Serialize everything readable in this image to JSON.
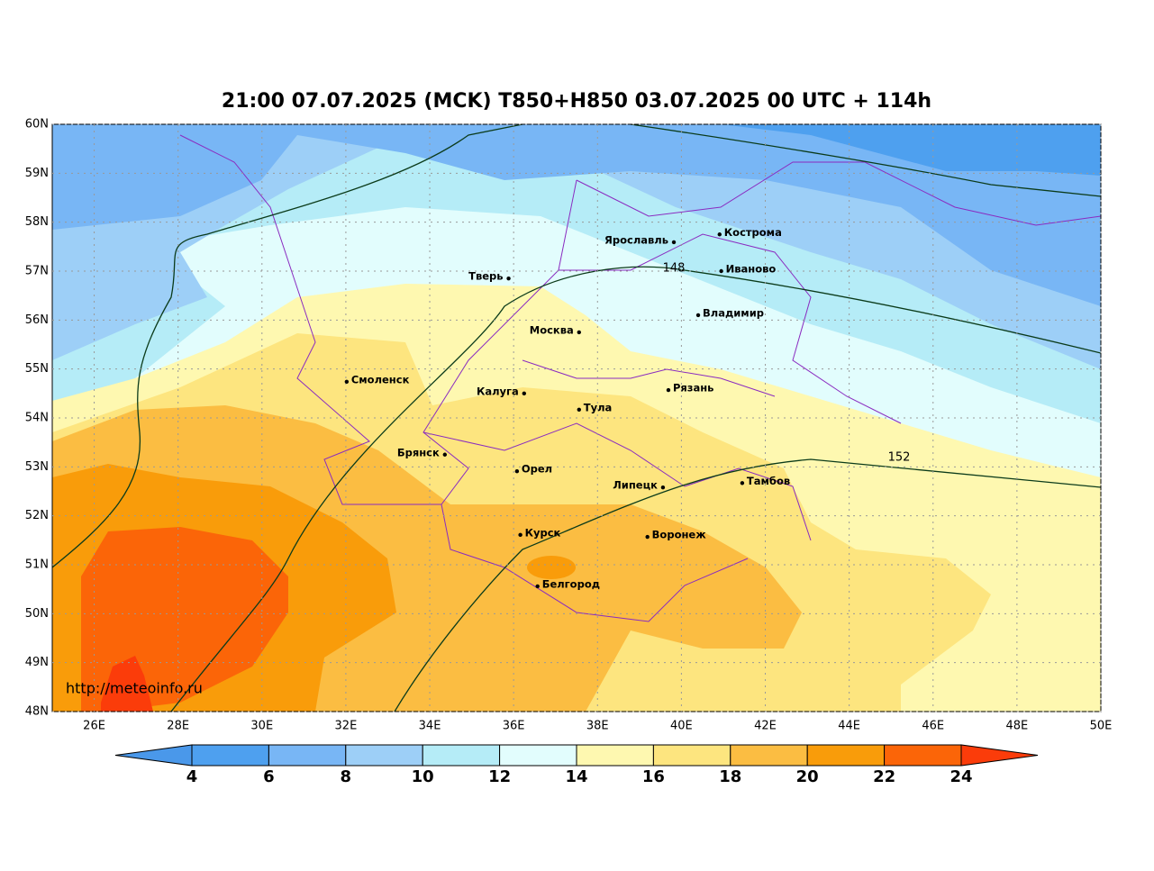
{
  "chart_data": {
    "type": "map",
    "title": "21:00 07.07.2025 (MCK) T850+H850 03.07.2025 00 UTC + 114h",
    "xlim": [
      25,
      50
    ],
    "ylim": [
      48,
      60
    ],
    "xticks": [
      {
        "value": 26,
        "label": "26E"
      },
      {
        "value": 28,
        "label": "28E"
      },
      {
        "value": 30,
        "label": "30E"
      },
      {
        "value": 32,
        "label": "32E"
      },
      {
        "value": 34,
        "label": "34E"
      },
      {
        "value": 36,
        "label": "36E"
      },
      {
        "value": 38,
        "label": "38E"
      },
      {
        "value": 40,
        "label": "40E"
      },
      {
        "value": 42,
        "label": "42E"
      },
      {
        "value": 44,
        "label": "44E"
      },
      {
        "value": 46,
        "label": "46E"
      },
      {
        "value": 48,
        "label": "48E"
      },
      {
        "value": 50,
        "label": "50E"
      }
    ],
    "yticks": [
      {
        "value": 48,
        "label": "48N"
      },
      {
        "value": 49,
        "label": "49N"
      },
      {
        "value": 50,
        "label": "50N"
      },
      {
        "value": 51,
        "label": "51N"
      },
      {
        "value": 52,
        "label": "52N"
      },
      {
        "value": 53,
        "label": "53N"
      },
      {
        "value": 54,
        "label": "54N"
      },
      {
        "value": 55,
        "label": "55N"
      },
      {
        "value": 56,
        "label": "56N"
      },
      {
        "value": 57,
        "label": "57N"
      },
      {
        "value": 58,
        "label": "58N"
      },
      {
        "value": 59,
        "label": "59N"
      },
      {
        "value": 60,
        "label": "60N"
      }
    ],
    "grid": true,
    "cities": [
      {
        "name": "Ярославль",
        "lon": 39.82,
        "lat": 57.59
      },
      {
        "name": "Кострома",
        "lon": 40.91,
        "lat": 57.75
      },
      {
        "name": "Иваново",
        "lon": 40.95,
        "lat": 57.0
      },
      {
        "name": "Тверь",
        "lon": 35.88,
        "lat": 56.85
      },
      {
        "name": "Владимир",
        "lon": 40.4,
        "lat": 56.1
      },
      {
        "name": "Москва",
        "lon": 37.56,
        "lat": 55.75
      },
      {
        "name": "Смоленск",
        "lon": 32.02,
        "lat": 54.74
      },
      {
        "name": "Калуга",
        "lon": 36.25,
        "lat": 54.5
      },
      {
        "name": "Рязань",
        "lon": 39.69,
        "lat": 54.57
      },
      {
        "name": "Тула",
        "lon": 37.56,
        "lat": 54.17
      },
      {
        "name": "Брянск",
        "lon": 34.36,
        "lat": 53.25
      },
      {
        "name": "Орел",
        "lon": 36.08,
        "lat": 52.91
      },
      {
        "name": "Липецк",
        "lon": 39.56,
        "lat": 52.58
      },
      {
        "name": "Тамбов",
        "lon": 41.45,
        "lat": 52.67
      },
      {
        "name": "Курск",
        "lon": 36.16,
        "lat": 51.61
      },
      {
        "name": "Воронеж",
        "lon": 39.19,
        "lat": 51.57
      },
      {
        "name": "Белгород",
        "lon": 36.57,
        "lat": 50.56
      }
    ],
    "contour_labels": [
      148,
      152
    ],
    "colorbar": {
      "ticks": [
        4,
        6,
        8,
        10,
        12,
        14,
        16,
        18,
        20,
        22,
        24
      ],
      "colors": [
        "#4a98ea",
        "#4ea0ef",
        "#78b6f5",
        "#9dcff7",
        "#b5ecf7",
        "#e2fdfd",
        "#fef8b0",
        "#fde57f",
        "#fbbd42",
        "#f99c0a",
        "#fb6508",
        "#fb3c0a"
      ]
    },
    "source": "http://meteoinfo.ru"
  }
}
